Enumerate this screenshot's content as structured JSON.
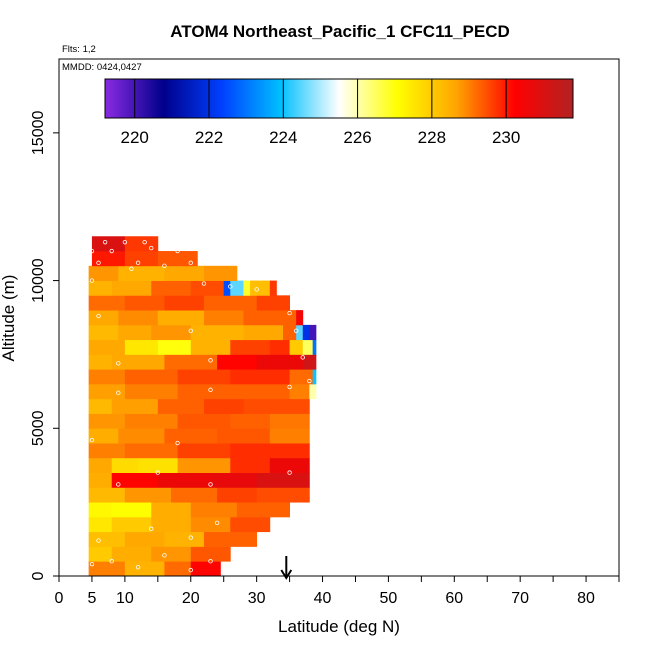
{
  "chart_data": {
    "type": "heatmap",
    "title": "ATOM4 Northeast_Pacific_1 CFC11_PECD",
    "flights_note": "Flts: 1,2",
    "date_note": "MMDD: 0424,0427",
    "xlabel": "Latitude (deg N)",
    "ylabel": "Altitude (m)",
    "xlim": [
      0,
      85
    ],
    "ylim": [
      0,
      17500
    ],
    "x_ticks": [
      0,
      5,
      10,
      20,
      30,
      40,
      50,
      60,
      70,
      80
    ],
    "y_ticks": [
      0,
      5000,
      10000,
      15000
    ],
    "x_tick_labels": [
      "0",
      "5",
      "10",
      "20",
      "30",
      "40",
      "50",
      "60",
      "70",
      "80"
    ],
    "y_tick_labels": [
      "0",
      "5000",
      "10000",
      "15000"
    ],
    "colorbar": {
      "min": 219.2,
      "max": 231.8,
      "ticks": [
        220,
        222,
        224,
        226,
        228,
        230
      ],
      "tick_labels": [
        "220",
        "222",
        "224",
        "226",
        "228",
        "230"
      ],
      "colors": [
        "#8a2be2",
        "#00008b",
        "#0040ff",
        "#00bfff",
        "#ffffff",
        "#ffff00",
        "#ffa500",
        "#ff0000",
        "#b22222"
      ]
    },
    "marker_latitude": 34.5,
    "marker_symbol": "arrow-down",
    "bands": [
      {
        "alt": 250,
        "segments": [
          [
            4.5,
            10,
            229.0
          ],
          [
            10,
            16,
            228.4
          ],
          [
            16,
            20,
            229.2
          ],
          [
            20,
            24.5,
            230.2
          ]
        ]
      },
      {
        "alt": 750,
        "segments": [
          [
            4.5,
            8,
            228.0
          ],
          [
            8,
            14,
            228.5
          ],
          [
            14,
            20,
            228.8
          ],
          [
            20,
            26,
            229.4
          ]
        ]
      },
      {
        "alt": 1250,
        "segments": [
          [
            4.5,
            10,
            228.2
          ],
          [
            10,
            16,
            228.6
          ],
          [
            16,
            22,
            228.4
          ],
          [
            22,
            30,
            229.3
          ]
        ]
      },
      {
        "alt": 1750,
        "segments": [
          [
            4.5,
            8,
            227.5
          ],
          [
            8,
            14,
            228.0
          ],
          [
            14,
            20,
            228.5
          ],
          [
            20,
            26,
            228.9
          ],
          [
            26,
            32,
            229.5
          ]
        ]
      },
      {
        "alt": 2250,
        "segments": [
          [
            4.5,
            8,
            227.2
          ],
          [
            8,
            14,
            227.1
          ],
          [
            14,
            20,
            228.5
          ],
          [
            20,
            27,
            229.0
          ],
          [
            27,
            35,
            229.3
          ]
        ]
      },
      {
        "alt": 2750,
        "segments": [
          [
            4.5,
            10,
            228.3
          ],
          [
            10,
            17,
            228.8
          ],
          [
            17,
            24,
            229.2
          ],
          [
            24,
            30,
            229.6
          ],
          [
            30,
            38,
            229.5
          ]
        ]
      },
      {
        "alt": 3250,
        "segments": [
          [
            4.5,
            8,
            228.5
          ],
          [
            8,
            15,
            230.2
          ],
          [
            15,
            23,
            230.6
          ],
          [
            23,
            30,
            230.7
          ],
          [
            30,
            38,
            231.0
          ]
        ]
      },
      {
        "alt": 3750,
        "segments": [
          [
            4.5,
            8,
            228.6
          ],
          [
            8,
            12,
            227.7
          ],
          [
            12,
            18,
            227.6
          ],
          [
            18,
            26,
            228.8
          ],
          [
            26,
            32,
            229.8
          ],
          [
            32,
            38,
            230.6
          ]
        ]
      },
      {
        "alt": 4250,
        "segments": [
          [
            4.5,
            10,
            229.0
          ],
          [
            10,
            18,
            229.2
          ],
          [
            18,
            26,
            229.6
          ],
          [
            26,
            38,
            229.8
          ]
        ]
      },
      {
        "alt": 4750,
        "segments": [
          [
            4.5,
            9,
            228.5
          ],
          [
            9,
            16,
            228.9
          ],
          [
            16,
            24,
            229.3
          ],
          [
            24,
            32,
            229.4
          ],
          [
            32,
            38,
            229.0
          ]
        ]
      },
      {
        "alt": 5250,
        "segments": [
          [
            4.5,
            10,
            228.8
          ],
          [
            10,
            18,
            229.0
          ],
          [
            18,
            26,
            229.4
          ],
          [
            26,
            32,
            229.3
          ],
          [
            32,
            38,
            229.1
          ]
        ]
      },
      {
        "alt": 5750,
        "segments": [
          [
            4.5,
            8,
            228.3
          ],
          [
            8,
            15,
            228.7
          ],
          [
            15,
            22,
            229.3
          ],
          [
            22,
            28,
            229.6
          ],
          [
            28,
            38,
            229.5
          ]
        ]
      },
      {
        "alt": 6250,
        "segments": [
          [
            4.5,
            10,
            228.7
          ],
          [
            10,
            18,
            229.0
          ],
          [
            18,
            26,
            229.3
          ],
          [
            26,
            35,
            229.3
          ],
          [
            35,
            38,
            229.0
          ],
          [
            38,
            39,
            226.0
          ]
        ]
      },
      {
        "alt": 6750,
        "segments": [
          [
            4.5,
            10,
            229.0
          ],
          [
            10,
            18,
            229.3
          ],
          [
            18,
            26,
            229.6
          ],
          [
            26,
            35,
            229.8
          ],
          [
            35,
            38.5,
            229.2
          ],
          [
            38.5,
            39,
            224.0
          ]
        ]
      },
      {
        "alt": 7250,
        "segments": [
          [
            4.5,
            8,
            228.4
          ],
          [
            8,
            16,
            228.6
          ],
          [
            16,
            24,
            229.2
          ],
          [
            24,
            30,
            230.2
          ],
          [
            30,
            37,
            230.6
          ],
          [
            37,
            39,
            231.2
          ]
        ]
      },
      {
        "alt": 7750,
        "segments": [
          [
            4.5,
            10,
            228.6
          ],
          [
            10,
            15,
            227.5
          ],
          [
            15,
            20,
            227.0
          ],
          [
            20,
            26,
            228.4
          ],
          [
            26,
            32,
            229.6
          ],
          [
            32,
            35,
            229.8
          ],
          [
            35,
            37,
            228.0
          ],
          [
            37,
            38.5,
            226.5
          ],
          [
            38.5,
            39,
            223.0
          ]
        ]
      },
      {
        "alt": 8250,
        "segments": [
          [
            4.5,
            9,
            228.3
          ],
          [
            9,
            14,
            228.6
          ],
          [
            14,
            20,
            228.8
          ],
          [
            20,
            28,
            228.4
          ],
          [
            28,
            34,
            228.6
          ],
          [
            34,
            36,
            229.3
          ],
          [
            36,
            37,
            224.5
          ],
          [
            37,
            38,
            222.0
          ],
          [
            38,
            39,
            220.0
          ]
        ]
      },
      {
        "alt": 8750,
        "segments": [
          [
            4.5,
            9,
            228.6
          ],
          [
            9,
            15,
            228.9
          ],
          [
            15,
            22,
            228.5
          ],
          [
            22,
            28,
            229.0
          ],
          [
            28,
            36,
            229.3
          ],
          [
            36,
            37,
            230.5
          ]
        ]
      },
      {
        "alt": 9250,
        "segments": [
          [
            4.5,
            10,
            229.2
          ],
          [
            10,
            16,
            229.4
          ],
          [
            16,
            22,
            229.6
          ],
          [
            22,
            30,
            229.3
          ],
          [
            30,
            35,
            229.6
          ]
        ]
      },
      {
        "alt": 9750,
        "segments": [
          [
            4.5,
            8,
            228.4
          ],
          [
            8,
            14,
            228.6
          ],
          [
            14,
            20,
            229.3
          ],
          [
            20,
            25,
            229.5
          ],
          [
            25,
            26,
            222.5
          ],
          [
            26,
            28,
            224.5
          ],
          [
            28,
            29,
            226.8
          ],
          [
            29,
            32,
            228.2
          ],
          [
            32,
            33,
            229.7
          ]
        ]
      },
      {
        "alt": 10250,
        "segments": [
          [
            4.5,
            9,
            228.8
          ],
          [
            9,
            16,
            228.4
          ],
          [
            16,
            22,
            228.6
          ],
          [
            22,
            27,
            228.8
          ]
        ]
      },
      {
        "alt": 10750,
        "segments": [
          [
            5,
            10,
            230.0
          ],
          [
            10,
            15,
            229.6
          ],
          [
            15,
            21,
            229.4
          ]
        ]
      },
      {
        "alt": 11250,
        "segments": [
          [
            5,
            10,
            231.0
          ],
          [
            10,
            15,
            229.7
          ]
        ]
      }
    ],
    "observation_points": [
      [
        5,
        400
      ],
      [
        8,
        500
      ],
      [
        12,
        300
      ],
      [
        16,
        700
      ],
      [
        20,
        200
      ],
      [
        23,
        500
      ],
      [
        6,
        1200
      ],
      [
        14,
        1600
      ],
      [
        20,
        1300
      ],
      [
        24,
        1800
      ],
      [
        9,
        3100
      ],
      [
        15,
        3500
      ],
      [
        23,
        3100
      ],
      [
        35,
        3500
      ],
      [
        5,
        4600
      ],
      [
        18,
        4500
      ],
      [
        9,
        6200
      ],
      [
        23,
        6300
      ],
      [
        35,
        6400
      ],
      [
        38,
        6600
      ],
      [
        9,
        7200
      ],
      [
        23,
        7300
      ],
      [
        37,
        7400
      ],
      [
        20,
        8300
      ],
      [
        36,
        8300
      ],
      [
        6,
        8800
      ],
      [
        35,
        8900
      ],
      [
        5,
        10000
      ],
      [
        11,
        10400
      ],
      [
        22,
        9900
      ],
      [
        26,
        9800
      ],
      [
        30,
        9700
      ],
      [
        6,
        10600
      ],
      [
        12,
        10600
      ],
      [
        16,
        10500
      ],
      [
        20,
        10600
      ],
      [
        5,
        11000
      ],
      [
        8,
        11000
      ],
      [
        14,
        11100
      ],
      [
        18,
        11000
      ],
      [
        7,
        11300
      ],
      [
        10,
        11300
      ],
      [
        13,
        11300
      ]
    ]
  }
}
